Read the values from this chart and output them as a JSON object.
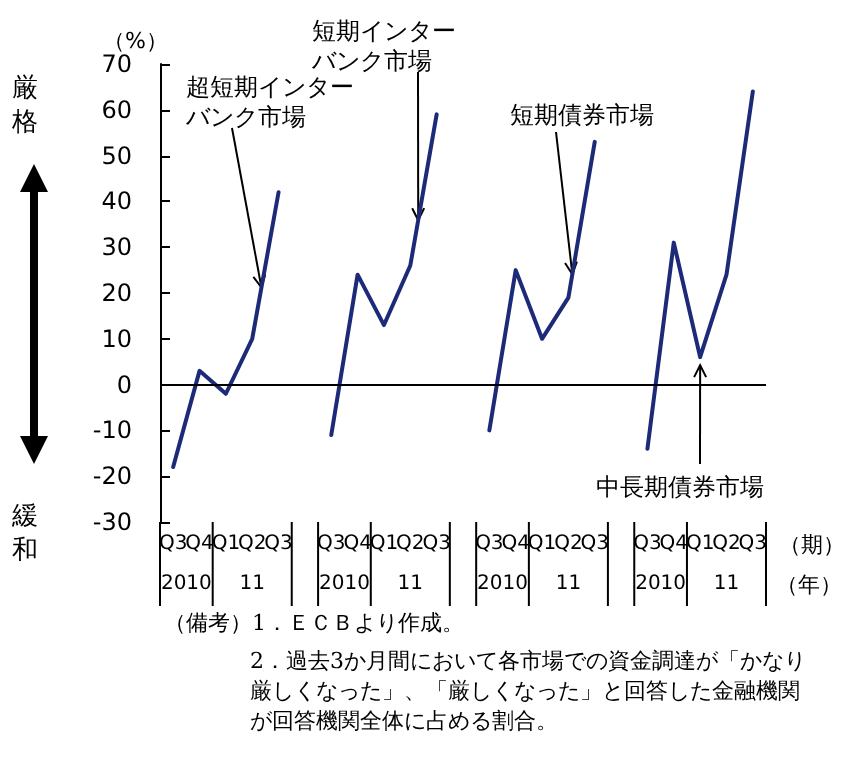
{
  "chart_data": {
    "type": "line",
    "ylabel": "（%）",
    "xlabel": "（期）",
    "categories": [
      "Q3",
      "Q4",
      "Q1",
      "Q2",
      "Q3",
      null,
      "Q3",
      "Q4",
      "Q1",
      "Q2",
      "Q3",
      null,
      "Q3",
      "Q4",
      "Q1",
      "Q2",
      "Q3",
      null,
      "Q3",
      "Q4",
      "Q1",
      "Q2",
      "Q3"
    ],
    "series": [
      {
        "name": "超短期インターバンク市場",
        "color": "#1c2a78",
        "values": [
          -18,
          3,
          -2,
          10,
          42,
          null,
          null,
          null,
          null,
          null,
          null,
          null,
          null,
          null,
          null,
          null,
          null,
          null,
          null,
          null,
          null,
          null,
          null
        ]
      },
      {
        "name": "短期インターバンク市場",
        "color": "#1c2a78",
        "values": [
          null,
          null,
          null,
          null,
          null,
          null,
          -11,
          24,
          13,
          26,
          59,
          null,
          null,
          null,
          null,
          null,
          null,
          null,
          null,
          null,
          null,
          null,
          null
        ]
      },
      {
        "name": "短期債券市場",
        "color": "#1c2a78",
        "values": [
          null,
          null,
          null,
          null,
          null,
          null,
          null,
          null,
          null,
          null,
          null,
          null,
          -10,
          25,
          10,
          19,
          53,
          null,
          null,
          null,
          null,
          null,
          null
        ]
      },
      {
        "name": "中長期債券市場",
        "color": "#1c2a78",
        "values": [
          null,
          null,
          null,
          null,
          null,
          null,
          null,
          null,
          null,
          null,
          null,
          null,
          null,
          null,
          null,
          null,
          null,
          null,
          -14,
          31,
          6,
          24,
          64
        ]
      }
    ],
    "ylim": [
      -30,
      70
    ],
    "yticks": [
      -30,
      -20,
      -10,
      0,
      10,
      20,
      30,
      40,
      50,
      60,
      70
    ],
    "ref_lines": [
      {
        "axis": "y",
        "value": 0,
        "color": "#000000"
      }
    ],
    "grid": false,
    "legend": false,
    "marker": "none",
    "line_style": "solid",
    "annotations": [
      "2010",
      "11",
      "2010",
      "11",
      "2010",
      "11",
      "2010",
      "11",
      "（年）",
      "厳格",
      "緩和",
      "（備考）1．ＥＣＢより作成。",
      "2．過去3か月間において各市場での資金調達が「かなり厳しくなった」、「厳しくなった」と回答した金融機関が回答機関全体に占める割合。"
    ]
  }
}
